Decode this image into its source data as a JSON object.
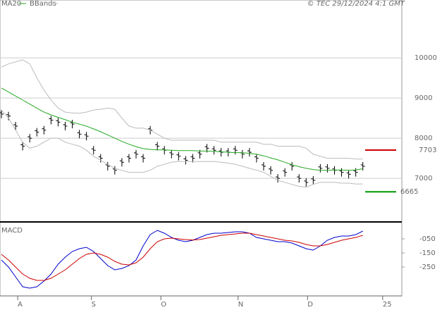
{
  "chart_data": [
    {
      "type": "ohlc-line",
      "legend": [
        "MA20",
        "BBands"
      ],
      "copyright": "© TEC 29/12/2024 4:1 GMT",
      "xlim": [
        -0.2,
        56.5
      ],
      "xticks": [
        {
          "value": 2.3,
          "label": "A"
        },
        {
          "value": 12.7,
          "label": "S"
        },
        {
          "value": 22.5,
          "label": "O"
        },
        {
          "value": 33.4,
          "label": "N"
        },
        {
          "value": 43.2,
          "label": "D"
        },
        {
          "value": 53.8,
          "label": "25"
        }
      ],
      "ylim": [
        5950,
        11440
      ],
      "yticks": [
        {
          "value": 10000,
          "label": "10000"
        },
        {
          "value": 9000,
          "label": "9000"
        },
        {
          "value": 8000,
          "label": "8000"
        },
        {
          "value": 7000,
          "label": "7000"
        }
      ],
      "grid": true,
      "series": [
        {
          "name": "Price",
          "color": "#000000",
          "values": [
            8600,
            8550,
            8300,
            7800,
            8000,
            8150,
            8200,
            8450,
            8400,
            8300,
            8350,
            8100,
            8050,
            7700,
            7500,
            7300,
            7200,
            7400,
            7500,
            7600,
            7500,
            8200,
            7800,
            7700,
            7600,
            7550,
            7450,
            7500,
            7600,
            7750,
            7700,
            7650,
            7650,
            7700,
            7600,
            7650,
            7500,
            7300,
            7200,
            7000,
            7150,
            7300,
            7000,
            6900,
            6950,
            7250,
            7250,
            7200,
            7150,
            7100,
            7150,
            7300
          ]
        },
        {
          "name": "MA20",
          "color": "#22aa22",
          "values": [
            9250,
            9150,
            9050,
            8950,
            8850,
            8750,
            8650,
            8580,
            8520,
            8460,
            8400,
            8350,
            8300,
            8230,
            8160,
            8080,
            8000,
            7920,
            7850,
            7790,
            7740,
            7720,
            7710,
            7710,
            7700,
            7690,
            7690,
            7690,
            7680,
            7680,
            7670,
            7660,
            7650,
            7640,
            7640,
            7620,
            7600,
            7560,
            7510,
            7460,
            7400,
            7340,
            7290,
            7250,
            7220,
            7200,
            7200,
            7210,
            7210,
            7200,
            7210,
            7240
          ]
        },
        {
          "name": "BBands",
          "color": "#bbbbbb",
          "values": [
            9770,
            9850,
            9900,
            9950,
            9850,
            9500,
            9200,
            8950,
            8750,
            8650,
            8630,
            8620,
            8650,
            8700,
            8720,
            8750,
            8720,
            8500,
            8300,
            8250,
            8250,
            8200,
            8100,
            8000,
            7950,
            7950,
            7950,
            7950,
            7950,
            7950,
            7950,
            7900,
            7900,
            7900,
            7900,
            7900,
            7900,
            7850,
            7850,
            7800,
            7800,
            7800,
            7800,
            7750,
            7600,
            7550,
            7500,
            7500,
            7500,
            7500,
            7480,
            7480
          ]
        },
        {
          "name": "BBands",
          "color": "#bbbbbb",
          "values": [
            8700,
            8500,
            8200,
            7900,
            7750,
            7800,
            7900,
            8000,
            8000,
            7900,
            7850,
            7800,
            7700,
            7550,
            7450,
            7350,
            7250,
            7200,
            7150,
            7150,
            7150,
            7200,
            7300,
            7350,
            7400,
            7420,
            7420,
            7420,
            7420,
            7420,
            7420,
            7400,
            7380,
            7350,
            7300,
            7250,
            7200,
            7150,
            7050,
            6950,
            6900,
            6850,
            6800,
            6780,
            6850,
            6900,
            6900,
            6900,
            6880,
            6880,
            6860,
            6860
          ]
        }
      ],
      "levels": [
        {
          "value": 7703,
          "color": "#cc0000"
        },
        {
          "value": 6665,
          "color": "#009900"
        }
      ]
    },
    {
      "type": "macd",
      "title": "MACD",
      "xlim": [
        -0.2,
        56.5
      ],
      "ylim": [
        -445,
        65
      ],
      "yticks": [
        {
          "value": -50,
          "label": "-050"
        },
        {
          "value": -150,
          "label": "-150"
        },
        {
          "value": -250,
          "label": "-250"
        }
      ],
      "series": [
        {
          "color": "#0000cc",
          "values": [
            -200,
            -250,
            -320,
            -390,
            -400,
            -390,
            -350,
            -300,
            -230,
            -180,
            -140,
            -120,
            -110,
            -140,
            -190,
            -240,
            -270,
            -260,
            -240,
            -200,
            -100,
            -20,
            10,
            -10,
            -40,
            -60,
            -70,
            -60,
            -40,
            -20,
            -10,
            -10,
            -5,
            0,
            0,
            -10,
            -40,
            -50,
            -60,
            -70,
            -70,
            -80,
            -100,
            -120,
            -130,
            -100,
            -60,
            -40,
            -30,
            -30,
            -20,
            5
          ]
        },
        {
          "color": "#cc0000",
          "values": [
            -160,
            -200,
            -250,
            -300,
            -330,
            -345,
            -345,
            -330,
            -300,
            -270,
            -230,
            -190,
            -160,
            -150,
            -160,
            -180,
            -210,
            -230,
            -235,
            -220,
            -180,
            -120,
            -70,
            -50,
            -45,
            -50,
            -55,
            -58,
            -55,
            -45,
            -35,
            -25,
            -20,
            -15,
            -10,
            -10,
            -20,
            -30,
            -40,
            -50,
            -60,
            -65,
            -75,
            -90,
            -100,
            -100,
            -90,
            -75,
            -60,
            -50,
            -40,
            -25
          ]
        }
      ]
    }
  ]
}
